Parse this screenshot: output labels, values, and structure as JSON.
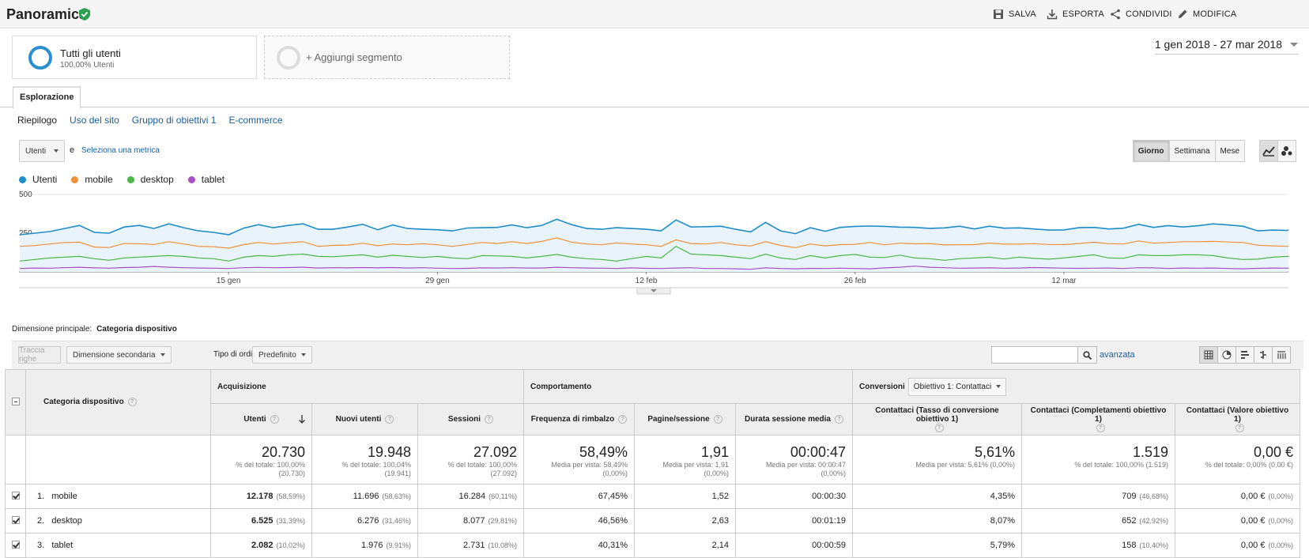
{
  "header": {
    "title": "Panoramica",
    "actions": [
      {
        "label": "SALVA",
        "icon": "save-icon"
      },
      {
        "label": "ESPORTA",
        "icon": "download-icon"
      },
      {
        "label": "CONDIVIDI",
        "icon": "share-icon"
      },
      {
        "label": "MODIFICA",
        "icon": "pencil-icon"
      }
    ]
  },
  "segments": {
    "active": {
      "name": "Tutti gli utenti",
      "sub": "100,00% Utenti"
    },
    "add_label": "+ Aggiungi segmento"
  },
  "date_range": "1 gen 2018 - 27 mar 2018",
  "tabs": {
    "main": "Esplorazione",
    "sub": [
      "Riepilogo",
      "Uso del sito",
      "Gruppo di obiettivi 1",
      "E-commerce"
    ]
  },
  "controls": {
    "metric": "Utenti",
    "and": "e",
    "select_metric": "Seleziona una metrica",
    "periods": [
      "Giorno",
      "Settimana",
      "Mese"
    ],
    "active_period": "Giorno"
  },
  "colors": {
    "utenti": "#1f8dc8",
    "mobile": "#f0913a",
    "desktop": "#4cb648",
    "tablet": "#a84fc4"
  },
  "chart_data": {
    "type": "line",
    "y_ticks": [
      "500",
      "250"
    ],
    "ylim": [
      0,
      500
    ],
    "x_tick_labels": [
      "15 gen",
      "29 gen",
      "12 feb",
      "26 feb",
      "12 mar"
    ],
    "x_tick_days": [
      14,
      28,
      42,
      56,
      70
    ],
    "days": 86,
    "series": [
      {
        "name": "Utenti",
        "color": "#1f8dc8",
        "values": [
          240,
          250,
          260,
          280,
          300,
          255,
          250,
          290,
          300,
          280,
          310,
          285,
          265,
          255,
          240,
          282,
          305,
          285,
          300,
          310,
          275,
          275,
          290,
          307,
          272,
          303,
          280,
          275,
          272,
          265,
          283,
          285,
          287,
          303,
          285,
          300,
          340,
          305,
          280,
          275,
          285,
          280,
          275,
          265,
          335,
          290,
          292,
          295,
          275,
          258,
          320,
          265,
          247,
          285,
          262,
          287,
          294,
          296,
          294,
          289,
          287,
          281,
          284,
          295,
          277,
          295,
          282,
          284,
          277,
          270,
          271,
          285,
          287,
          277,
          282,
          307,
          287,
          299,
          290,
          298,
          310,
          303,
          295,
          265,
          270,
          268,
          301,
          287
        ]
      },
      {
        "name": "mobile",
        "color": "#f0913a",
        "values": [
          165,
          170,
          180,
          190,
          192,
          160,
          157,
          183,
          182,
          177,
          195,
          180,
          165,
          162,
          153,
          176,
          190,
          180,
          188,
          195,
          165,
          171,
          173,
          185,
          169,
          180,
          175,
          182,
          175,
          165,
          177,
          190,
          183,
          195,
          183,
          197,
          220,
          192,
          180,
          175,
          187,
          180,
          175,
          165,
          207,
          183,
          180,
          190,
          175,
          167,
          195,
          171,
          156,
          180,
          168,
          176,
          178,
          190,
          175,
          185,
          181,
          183,
          174,
          175,
          176,
          186,
          179,
          179,
          182,
          177,
          176,
          183,
          192,
          182,
          180,
          200,
          185,
          190,
          195,
          195,
          197,
          193,
          190,
          172,
          168,
          165,
          198,
          185
        ]
      },
      {
        "name": "desktop",
        "color": "#4cb648",
        "values": [
          70,
          80,
          90,
          95,
          100,
          85,
          75,
          90,
          95,
          100,
          105,
          100,
          90,
          85,
          70,
          95,
          105,
          100,
          110,
          115,
          100,
          98,
          104,
          110,
          95,
          107,
          100,
          93,
          100,
          90,
          85,
          105,
          103,
          100,
          90,
          100,
          113,
          95,
          85,
          80,
          70,
          85,
          100,
          90,
          165,
          115,
          110,
          105,
          95,
          85,
          115,
          90,
          80,
          105,
          90,
          105,
          113,
          95,
          93,
          108,
          90,
          85,
          75,
          85,
          90,
          95,
          83,
          95,
          87,
          82,
          90,
          100,
          110,
          90,
          88,
          110,
          105,
          105,
          110,
          110,
          105,
          90,
          80,
          82,
          95,
          100,
          118,
          112
        ]
      },
      {
        "name": "tablet",
        "color": "#a84fc4",
        "values": [
          22,
          25,
          24,
          27,
          30,
          26,
          24,
          28,
          30,
          35,
          30,
          27,
          25,
          24,
          22,
          27,
          29,
          27,
          28,
          30,
          25,
          27,
          26,
          28,
          26,
          28,
          25,
          27,
          24,
          22,
          23,
          26,
          25,
          27,
          25,
          25,
          30,
          27,
          25,
          24,
          22,
          26,
          23,
          22,
          25,
          27,
          22,
          22,
          20,
          17,
          26,
          22,
          20,
          23,
          22,
          24,
          22,
          20,
          26,
          30,
          37,
          30,
          27,
          24,
          25,
          26,
          24,
          25,
          28,
          26,
          24,
          23,
          24,
          25,
          22,
          27,
          26,
          22,
          25,
          24,
          25,
          22,
          20,
          23,
          25,
          24,
          28,
          24
        ]
      }
    ]
  },
  "dimension": {
    "label": "Dimensione principale:",
    "value": "Categoria dispositivo"
  },
  "table_tools": {
    "plot_rows": "Traccia righe",
    "secondary_dim": "Dimensione secondaria",
    "sort_label": "Tipo di ordinamento:",
    "sort_value": "Predefinito",
    "advanced": "avanzata"
  },
  "table": {
    "dim_header": "Categoria dispositivo",
    "groups": {
      "acq": "Acquisizione",
      "beh": "Comportamento",
      "conv": "Conversioni",
      "conv_select": "Obiettivo 1: Contattaci"
    },
    "columns": [
      "Utenti",
      "Nuovi utenti",
      "Sessioni",
      "Frequenza di rimbalzo",
      "Pagine/sessione",
      "Durata sessione media",
      "Contattaci (Tasso di conversione obiettivo 1)",
      "Contattaci (Completamenti obiettivo 1)",
      "Contattaci (Valore obiettivo 1)"
    ],
    "totals": [
      {
        "v": "20.730",
        "s1": "% del totale: 100,00%",
        "s2": "(20.730)"
      },
      {
        "v": "19.948",
        "s1": "% del totale: 100,04%",
        "s2": "(19.941)"
      },
      {
        "v": "27.092",
        "s1": "% del totale: 100,00%",
        "s2": "(27.092)"
      },
      {
        "v": "58,49%",
        "s1": "Media per vista: 58,49%",
        "s2": "(0,00%)"
      },
      {
        "v": "1,91",
        "s1": "Media per vista: 1,91",
        "s2": "(0,00%)"
      },
      {
        "v": "00:00:47",
        "s1": "Media per vista: 00:00:47",
        "s2": "(0,00%)"
      },
      {
        "v": "5,61%",
        "s1": "Media per vista: 5,61% (0,00%)",
        "s2": ""
      },
      {
        "v": "1.519",
        "s1": "% del totale: 100,00% (1.519)",
        "s2": ""
      },
      {
        "v": "0,00 €",
        "s1": "% del totale: 0,00% (0,00 €)",
        "s2": ""
      }
    ],
    "rows": [
      {
        "idx": "1.",
        "name": "mobile",
        "cells": [
          [
            "12.178",
            "(58,59%)"
          ],
          [
            "11.696",
            "(58,63%)"
          ],
          [
            "16.284",
            "(60,11%)"
          ],
          [
            "67,45%",
            ""
          ],
          [
            "1,52",
            ""
          ],
          [
            "00:00:30",
            ""
          ],
          [
            "4,35%",
            ""
          ],
          [
            "709",
            "(46,68%)"
          ],
          [
            "0,00 €",
            "(0,00%)"
          ]
        ]
      },
      {
        "idx": "2.",
        "name": "desktop",
        "cells": [
          [
            "6.525",
            "(31,39%)"
          ],
          [
            "6.276",
            "(31,46%)"
          ],
          [
            "8.077",
            "(29,81%)"
          ],
          [
            "46,56%",
            ""
          ],
          [
            "2,63",
            ""
          ],
          [
            "00:01:19",
            ""
          ],
          [
            "8,07%",
            ""
          ],
          [
            "652",
            "(42,92%)"
          ],
          [
            "0,00 €",
            "(0,00%)"
          ]
        ]
      },
      {
        "idx": "3.",
        "name": "tablet",
        "cells": [
          [
            "2.082",
            "(10,02%)"
          ],
          [
            "1.976",
            "(9,91%)"
          ],
          [
            "2.731",
            "(10,08%)"
          ],
          [
            "40,31%",
            ""
          ],
          [
            "2,14",
            ""
          ],
          [
            "00:00:59",
            ""
          ],
          [
            "5,79%",
            ""
          ],
          [
            "158",
            "(10,40%)"
          ],
          [
            "0,00 €",
            "(0,00%)"
          ]
        ]
      }
    ]
  }
}
